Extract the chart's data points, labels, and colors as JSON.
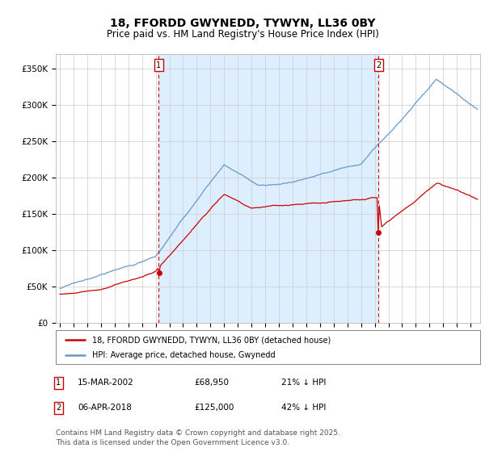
{
  "title": "18, FFORDD GWYNEDD, TYWYN, LL36 0BY",
  "subtitle": "Price paid vs. HM Land Registry's House Price Index (HPI)",
  "title_fontsize": 10,
  "subtitle_fontsize": 8.5,
  "ylabel_ticks": [
    "£0",
    "£50K",
    "£100K",
    "£150K",
    "£200K",
    "£250K",
    "£300K",
    "£350K"
  ],
  "ytick_values": [
    0,
    50000,
    100000,
    150000,
    200000,
    250000,
    300000,
    350000
  ],
  "ylim": [
    0,
    370000
  ],
  "xlim_start": 1994.7,
  "xlim_end": 2025.7,
  "background_color": "#ffffff",
  "grid_color": "#cccccc",
  "hpi_color": "#6699cc",
  "price_color": "#cc0000",
  "shade_color": "#ddeeff",
  "marker1_date": 2002.21,
  "marker2_date": 2018.27,
  "marker1_price": 68950,
  "marker2_price": 125000,
  "legend_label1": "18, FFORDD GWYNEDD, TYWYN, LL36 0BY (detached house)",
  "legend_label2": "HPI: Average price, detached house, Gwynedd",
  "annotation1_date": "15-MAR-2002",
  "annotation1_price": "£68,950",
  "annotation1_hpi": "21% ↓ HPI",
  "annotation2_date": "06-APR-2018",
  "annotation2_price": "£125,000",
  "annotation2_hpi": "42% ↓ HPI",
  "footnote": "Contains HM Land Registry data © Crown copyright and database right 2025.\nThis data is licensed under the Open Government Licence v3.0.",
  "footnote_fontsize": 6.5
}
